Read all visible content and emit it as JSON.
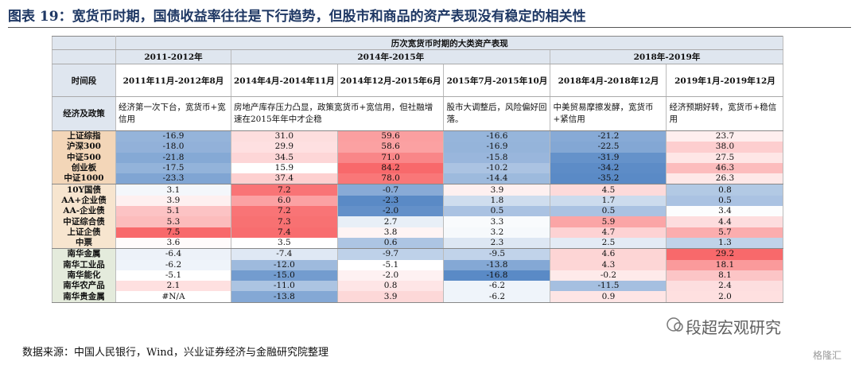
{
  "header": {
    "title": "图表 19：宽货币时期，国债收益率往往是下行趋势，但股市和商品的资产表现没有稳定的相关性"
  },
  "table": {
    "caption": "历次宽货币时期的大类资产表现",
    "year_groups": [
      "2011-2012年",
      "2014年-2015年",
      "2018年-2019年"
    ],
    "period_header": "时间段",
    "periods": [
      "2011年11月-2012年8月",
      "2014年4月-2014年11月",
      "2014年12月-2015年6月",
      "2015年7月-2015年10月",
      "2018年4月-2018年12月",
      "2019年1月-2019年12月"
    ],
    "policy_header": "经济及政策",
    "policies": [
      "经济第一次下台，宽货币+宽信用",
      "房地产库存压力凸显，政策宽货币+宽信用，但社融增速在2015年年中才企稳",
      "股市大调整后，风险偏好回落。",
      "中美贸易摩擦发酵，宽货币+紧信用",
      "经济预期好转，宽货币+稳信用"
    ],
    "groups": [
      {
        "rows": [
          {
            "label": "上证综指",
            "values": [
              "-16.9",
              "31.0",
              "59.6",
              "-16.6",
              "-21.2",
              "23.7"
            ]
          },
          {
            "label": "沪深300",
            "values": [
              "-18.0",
              "29.9",
              "58.6",
              "-16.9",
              "-22.5",
              "38.0"
            ]
          },
          {
            "label": "中证500",
            "values": [
              "-21.8",
              "34.5",
              "71.0",
              "-15.8",
              "-31.9",
              "27.5"
            ]
          },
          {
            "label": "创业板",
            "values": [
              "-17.5",
              "15.9",
              "84.2",
              "-10.2",
              "-34.2",
              "46.3"
            ]
          },
          {
            "label": "中证1000",
            "values": [
              "-23.3",
              "37.4",
              "78.0",
              "-14.4",
              "-35.2",
              "26.3"
            ]
          }
        ]
      },
      {
        "rows": [
          {
            "label": "10Y国债",
            "values": [
              "3.1",
              "7.2",
              "-0.7",
              "3.9",
              "4.5",
              "0.8"
            ]
          },
          {
            "label": "AA+企业债",
            "values": [
              "3.9",
              "6.0",
              "-2.3",
              "1.8",
              "1.7",
              "0.5"
            ]
          },
          {
            "label": "AA-企业债",
            "values": [
              "5.1",
              "7.2",
              "-2.0",
              "0.5",
              "0.5",
              "3.4"
            ]
          },
          {
            "label": "中证综合债",
            "values": [
              "5.3",
              "7.3",
              "2.7",
              "3.3",
              "5.9",
              "4.4"
            ]
          },
          {
            "label": "上证企债",
            "values": [
              "7.5",
              "7.4",
              "3.8",
              "3.2",
              "4.7",
              "5.7"
            ]
          },
          {
            "label": "中票",
            "values": [
              "3.6",
              "3.5",
              "0.6",
              "2.3",
              "2.5",
              "1.3"
            ]
          }
        ]
      },
      {
        "rows": [
          {
            "label": "南华金属",
            "values": [
              "-6.4",
              "-7.4",
              "-9.7",
              "-9.5",
              "4.6",
              "29.2"
            ]
          },
          {
            "label": "南华工业品",
            "values": [
              "-6.2",
              "-12.0",
              "-5.1",
              "-13.8",
              "4.3",
              "18.1"
            ]
          },
          {
            "label": "南华能化",
            "values": [
              "-5.1",
              "-15.0",
              "-2.0",
              "-16.8",
              "-0.2",
              "8.1"
            ]
          },
          {
            "label": "南华农产品",
            "values": [
              "2.1",
              "-11.0",
              "0.8",
              "-6.2",
              "-11.5",
              "2.4"
            ]
          },
          {
            "label": "南华贵金属",
            "values": [
              "#N/A",
              "-13.8",
              "3.9",
              "-6.2",
              "0.9",
              "2.0"
            ]
          }
        ]
      }
    ]
  },
  "source": "数据来源：中国人民银行，Wind，兴业证券经济与金融研究院整理",
  "watermark": "段超宏观研究",
  "logo": "格隆汇"
}
